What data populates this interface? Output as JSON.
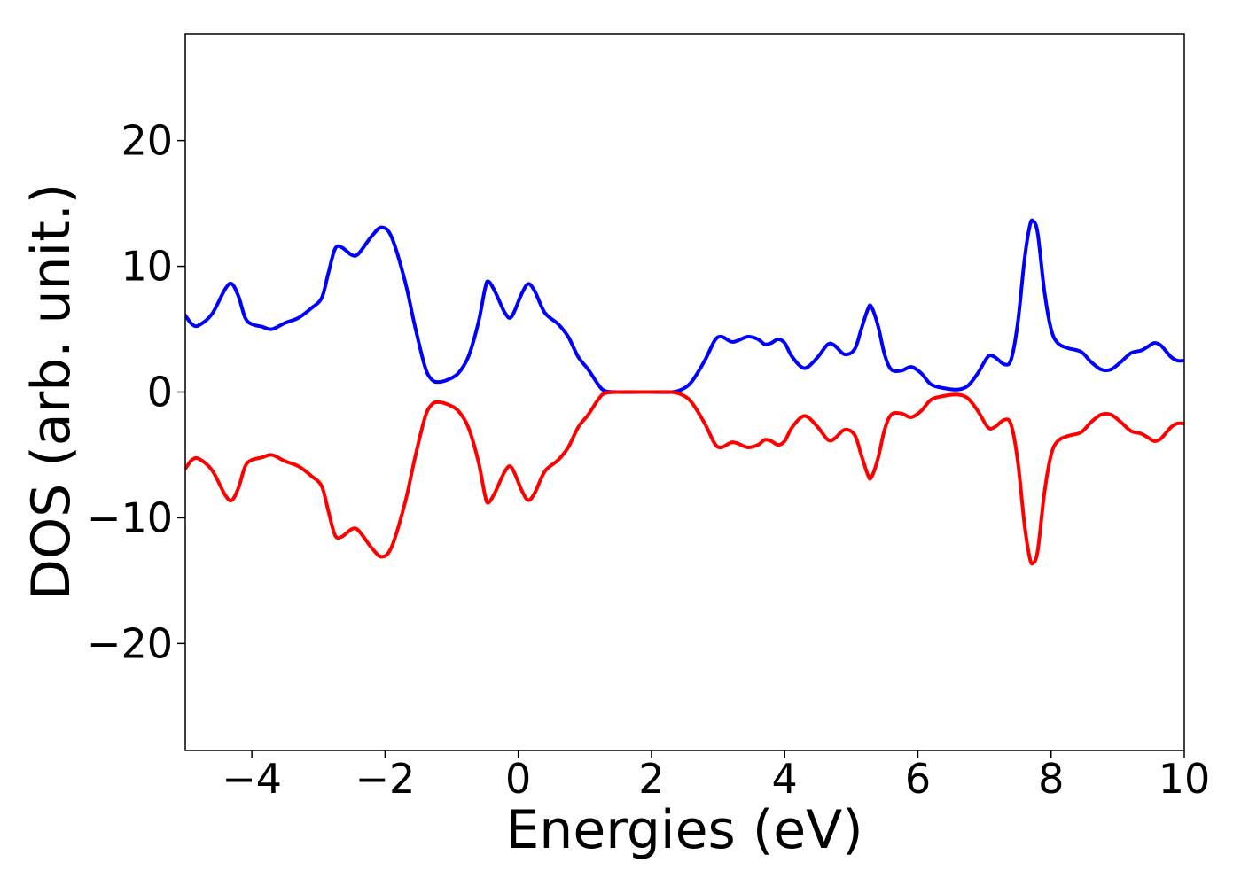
{
  "chart_data": {
    "type": "line",
    "title": "",
    "xlabel": "Energies (eV)",
    "ylabel": "DOS (arb. unit.)",
    "xlim": [
      -5,
      10
    ],
    "ylim": [
      -28.5,
      28.5
    ],
    "xticks": [
      -4,
      -2,
      0,
      2,
      4,
      6,
      8,
      10
    ],
    "xtick_labels": [
      "−4",
      "−2",
      "0",
      "2",
      "4",
      "6",
      "8",
      "10"
    ],
    "yticks": [
      20,
      10,
      0,
      -10,
      -20
    ],
    "ytick_labels": [
      "20",
      "10",
      "0",
      "−10",
      "−20"
    ],
    "grid": false,
    "legend": "none",
    "series": [
      {
        "color": "#0000ff",
        "points": [
          [
            -5.0,
            6.1
          ],
          [
            -4.9,
            5.4
          ],
          [
            -4.8,
            5.3
          ],
          [
            -4.6,
            6.2
          ],
          [
            -4.4,
            8.2
          ],
          [
            -4.3,
            8.6
          ],
          [
            -4.2,
            7.6
          ],
          [
            -4.1,
            5.9
          ],
          [
            -4.0,
            5.4
          ],
          [
            -3.85,
            5.2
          ],
          [
            -3.7,
            5.0
          ],
          [
            -3.5,
            5.5
          ],
          [
            -3.3,
            5.9
          ],
          [
            -3.1,
            6.7
          ],
          [
            -2.95,
            7.5
          ],
          [
            -2.85,
            9.5
          ],
          [
            -2.75,
            11.4
          ],
          [
            -2.65,
            11.5
          ],
          [
            -2.5,
            10.9
          ],
          [
            -2.4,
            11.0
          ],
          [
            -2.2,
            12.4
          ],
          [
            -2.05,
            13.1
          ],
          [
            -1.9,
            12.3
          ],
          [
            -1.7,
            8.8
          ],
          [
            -1.55,
            5.2
          ],
          [
            -1.4,
            2.0
          ],
          [
            -1.3,
            1.0
          ],
          [
            -1.2,
            0.8
          ],
          [
            -1.05,
            1.0
          ],
          [
            -0.9,
            1.5
          ],
          [
            -0.75,
            2.8
          ],
          [
            -0.6,
            5.5
          ],
          [
            -0.5,
            8.2
          ],
          [
            -0.45,
            8.8
          ],
          [
            -0.35,
            8.0
          ],
          [
            -0.2,
            6.3
          ],
          [
            -0.1,
            6.0
          ],
          [
            0.05,
            7.8
          ],
          [
            0.15,
            8.6
          ],
          [
            0.25,
            8.0
          ],
          [
            0.4,
            6.3
          ],
          [
            0.6,
            5.4
          ],
          [
            0.75,
            4.4
          ],
          [
            0.9,
            2.8
          ],
          [
            1.05,
            1.8
          ],
          [
            1.2,
            0.6
          ],
          [
            1.3,
            0.1
          ],
          [
            1.5,
            0.0
          ],
          [
            2.0,
            0.0
          ],
          [
            2.3,
            0.0
          ],
          [
            2.45,
            0.2
          ],
          [
            2.6,
            0.8
          ],
          [
            2.8,
            2.5
          ],
          [
            2.95,
            4.1
          ],
          [
            3.05,
            4.4
          ],
          [
            3.2,
            4.0
          ],
          [
            3.3,
            4.1
          ],
          [
            3.45,
            4.4
          ],
          [
            3.6,
            4.2
          ],
          [
            3.7,
            3.8
          ],
          [
            3.8,
            3.9
          ],
          [
            3.9,
            4.2
          ],
          [
            4.0,
            3.9
          ],
          [
            4.1,
            2.9
          ],
          [
            4.25,
            2.0
          ],
          [
            4.35,
            2.0
          ],
          [
            4.5,
            2.8
          ],
          [
            4.65,
            3.8
          ],
          [
            4.75,
            3.7
          ],
          [
            4.9,
            3.0
          ],
          [
            5.05,
            3.4
          ],
          [
            5.15,
            5.0
          ],
          [
            5.25,
            6.6
          ],
          [
            5.3,
            6.8
          ],
          [
            5.4,
            5.3
          ],
          [
            5.5,
            3.0
          ],
          [
            5.6,
            1.8
          ],
          [
            5.75,
            1.7
          ],
          [
            5.9,
            2.0
          ],
          [
            6.05,
            1.5
          ],
          [
            6.2,
            0.6
          ],
          [
            6.4,
            0.3
          ],
          [
            6.6,
            0.2
          ],
          [
            6.75,
            0.5
          ],
          [
            6.9,
            1.5
          ],
          [
            7.05,
            2.8
          ],
          [
            7.15,
            2.8
          ],
          [
            7.3,
            2.2
          ],
          [
            7.4,
            2.6
          ],
          [
            7.5,
            5.5
          ],
          [
            7.6,
            10.5
          ],
          [
            7.68,
            13.2
          ],
          [
            7.73,
            13.6
          ],
          [
            7.8,
            12.6
          ],
          [
            7.9,
            8.0
          ],
          [
            8.0,
            5.0
          ],
          [
            8.1,
            3.9
          ],
          [
            8.25,
            3.5
          ],
          [
            8.45,
            3.2
          ],
          [
            8.6,
            2.4
          ],
          [
            8.75,
            1.8
          ],
          [
            8.9,
            1.8
          ],
          [
            9.05,
            2.4
          ],
          [
            9.2,
            3.1
          ],
          [
            9.35,
            3.3
          ],
          [
            9.45,
            3.6
          ],
          [
            9.55,
            3.9
          ],
          [
            9.65,
            3.7
          ],
          [
            9.8,
            2.8
          ],
          [
            9.9,
            2.5
          ],
          [
            10.0,
            2.5
          ]
        ]
      },
      {
        "color": "#ff0000",
        "points": [
          [
            -5.0,
            -6.1
          ],
          [
            -4.9,
            -5.4
          ],
          [
            -4.8,
            -5.3
          ],
          [
            -4.6,
            -6.2
          ],
          [
            -4.4,
            -8.2
          ],
          [
            -4.3,
            -8.6
          ],
          [
            -4.2,
            -7.6
          ],
          [
            -4.1,
            -5.9
          ],
          [
            -4.0,
            -5.4
          ],
          [
            -3.85,
            -5.2
          ],
          [
            -3.7,
            -5.0
          ],
          [
            -3.5,
            -5.5
          ],
          [
            -3.3,
            -5.9
          ],
          [
            -3.1,
            -6.7
          ],
          [
            -2.95,
            -7.5
          ],
          [
            -2.85,
            -9.5
          ],
          [
            -2.75,
            -11.4
          ],
          [
            -2.65,
            -11.5
          ],
          [
            -2.5,
            -10.9
          ],
          [
            -2.4,
            -11.0
          ],
          [
            -2.2,
            -12.4
          ],
          [
            -2.05,
            -13.1
          ],
          [
            -1.9,
            -12.3
          ],
          [
            -1.7,
            -8.8
          ],
          [
            -1.55,
            -5.2
          ],
          [
            -1.4,
            -2.0
          ],
          [
            -1.3,
            -1.0
          ],
          [
            -1.2,
            -0.8
          ],
          [
            -1.05,
            -1.0
          ],
          [
            -0.9,
            -1.5
          ],
          [
            -0.75,
            -2.8
          ],
          [
            -0.6,
            -5.5
          ],
          [
            -0.5,
            -8.2
          ],
          [
            -0.45,
            -8.8
          ],
          [
            -0.35,
            -8.0
          ],
          [
            -0.2,
            -6.3
          ],
          [
            -0.1,
            -6.0
          ],
          [
            0.05,
            -7.8
          ],
          [
            0.15,
            -8.6
          ],
          [
            0.25,
            -8.0
          ],
          [
            0.4,
            -6.3
          ],
          [
            0.6,
            -5.4
          ],
          [
            0.75,
            -4.4
          ],
          [
            0.9,
            -2.8
          ],
          [
            1.05,
            -1.8
          ],
          [
            1.2,
            -0.6
          ],
          [
            1.3,
            -0.1
          ],
          [
            1.5,
            0.0
          ],
          [
            2.0,
            0.0
          ],
          [
            2.3,
            0.0
          ],
          [
            2.45,
            -0.2
          ],
          [
            2.6,
            -0.8
          ],
          [
            2.8,
            -2.5
          ],
          [
            2.95,
            -4.1
          ],
          [
            3.05,
            -4.4
          ],
          [
            3.2,
            -4.0
          ],
          [
            3.3,
            -4.1
          ],
          [
            3.45,
            -4.4
          ],
          [
            3.6,
            -4.2
          ],
          [
            3.7,
            -3.8
          ],
          [
            3.8,
            -3.9
          ],
          [
            3.9,
            -4.2
          ],
          [
            4.0,
            -3.9
          ],
          [
            4.1,
            -2.9
          ],
          [
            4.25,
            -2.0
          ],
          [
            4.35,
            -2.0
          ],
          [
            4.5,
            -2.8
          ],
          [
            4.65,
            -3.8
          ],
          [
            4.75,
            -3.7
          ],
          [
            4.9,
            -3.0
          ],
          [
            5.05,
            -3.4
          ],
          [
            5.15,
            -5.0
          ],
          [
            5.25,
            -6.6
          ],
          [
            5.3,
            -6.8
          ],
          [
            5.4,
            -5.3
          ],
          [
            5.5,
            -3.0
          ],
          [
            5.6,
            -1.8
          ],
          [
            5.75,
            -1.7
          ],
          [
            5.9,
            -2.0
          ],
          [
            6.05,
            -1.5
          ],
          [
            6.2,
            -0.6
          ],
          [
            6.4,
            -0.3
          ],
          [
            6.6,
            -0.2
          ],
          [
            6.75,
            -0.5
          ],
          [
            6.9,
            -1.5
          ],
          [
            7.05,
            -2.8
          ],
          [
            7.15,
            -2.8
          ],
          [
            7.3,
            -2.2
          ],
          [
            7.4,
            -2.6
          ],
          [
            7.5,
            -5.5
          ],
          [
            7.6,
            -10.5
          ],
          [
            7.68,
            -13.2
          ],
          [
            7.73,
            -13.6
          ],
          [
            7.8,
            -12.6
          ],
          [
            7.9,
            -8.0
          ],
          [
            8.0,
            -5.0
          ],
          [
            8.1,
            -3.9
          ],
          [
            8.25,
            -3.5
          ],
          [
            8.45,
            -3.2
          ],
          [
            8.6,
            -2.4
          ],
          [
            8.75,
            -1.8
          ],
          [
            8.9,
            -1.8
          ],
          [
            9.05,
            -2.4
          ],
          [
            9.2,
            -3.1
          ],
          [
            9.35,
            -3.3
          ],
          [
            9.45,
            -3.6
          ],
          [
            9.55,
            -3.9
          ],
          [
            9.65,
            -3.7
          ],
          [
            9.8,
            -2.8
          ],
          [
            9.9,
            -2.5
          ],
          [
            10.0,
            -2.5
          ]
        ]
      }
    ]
  }
}
